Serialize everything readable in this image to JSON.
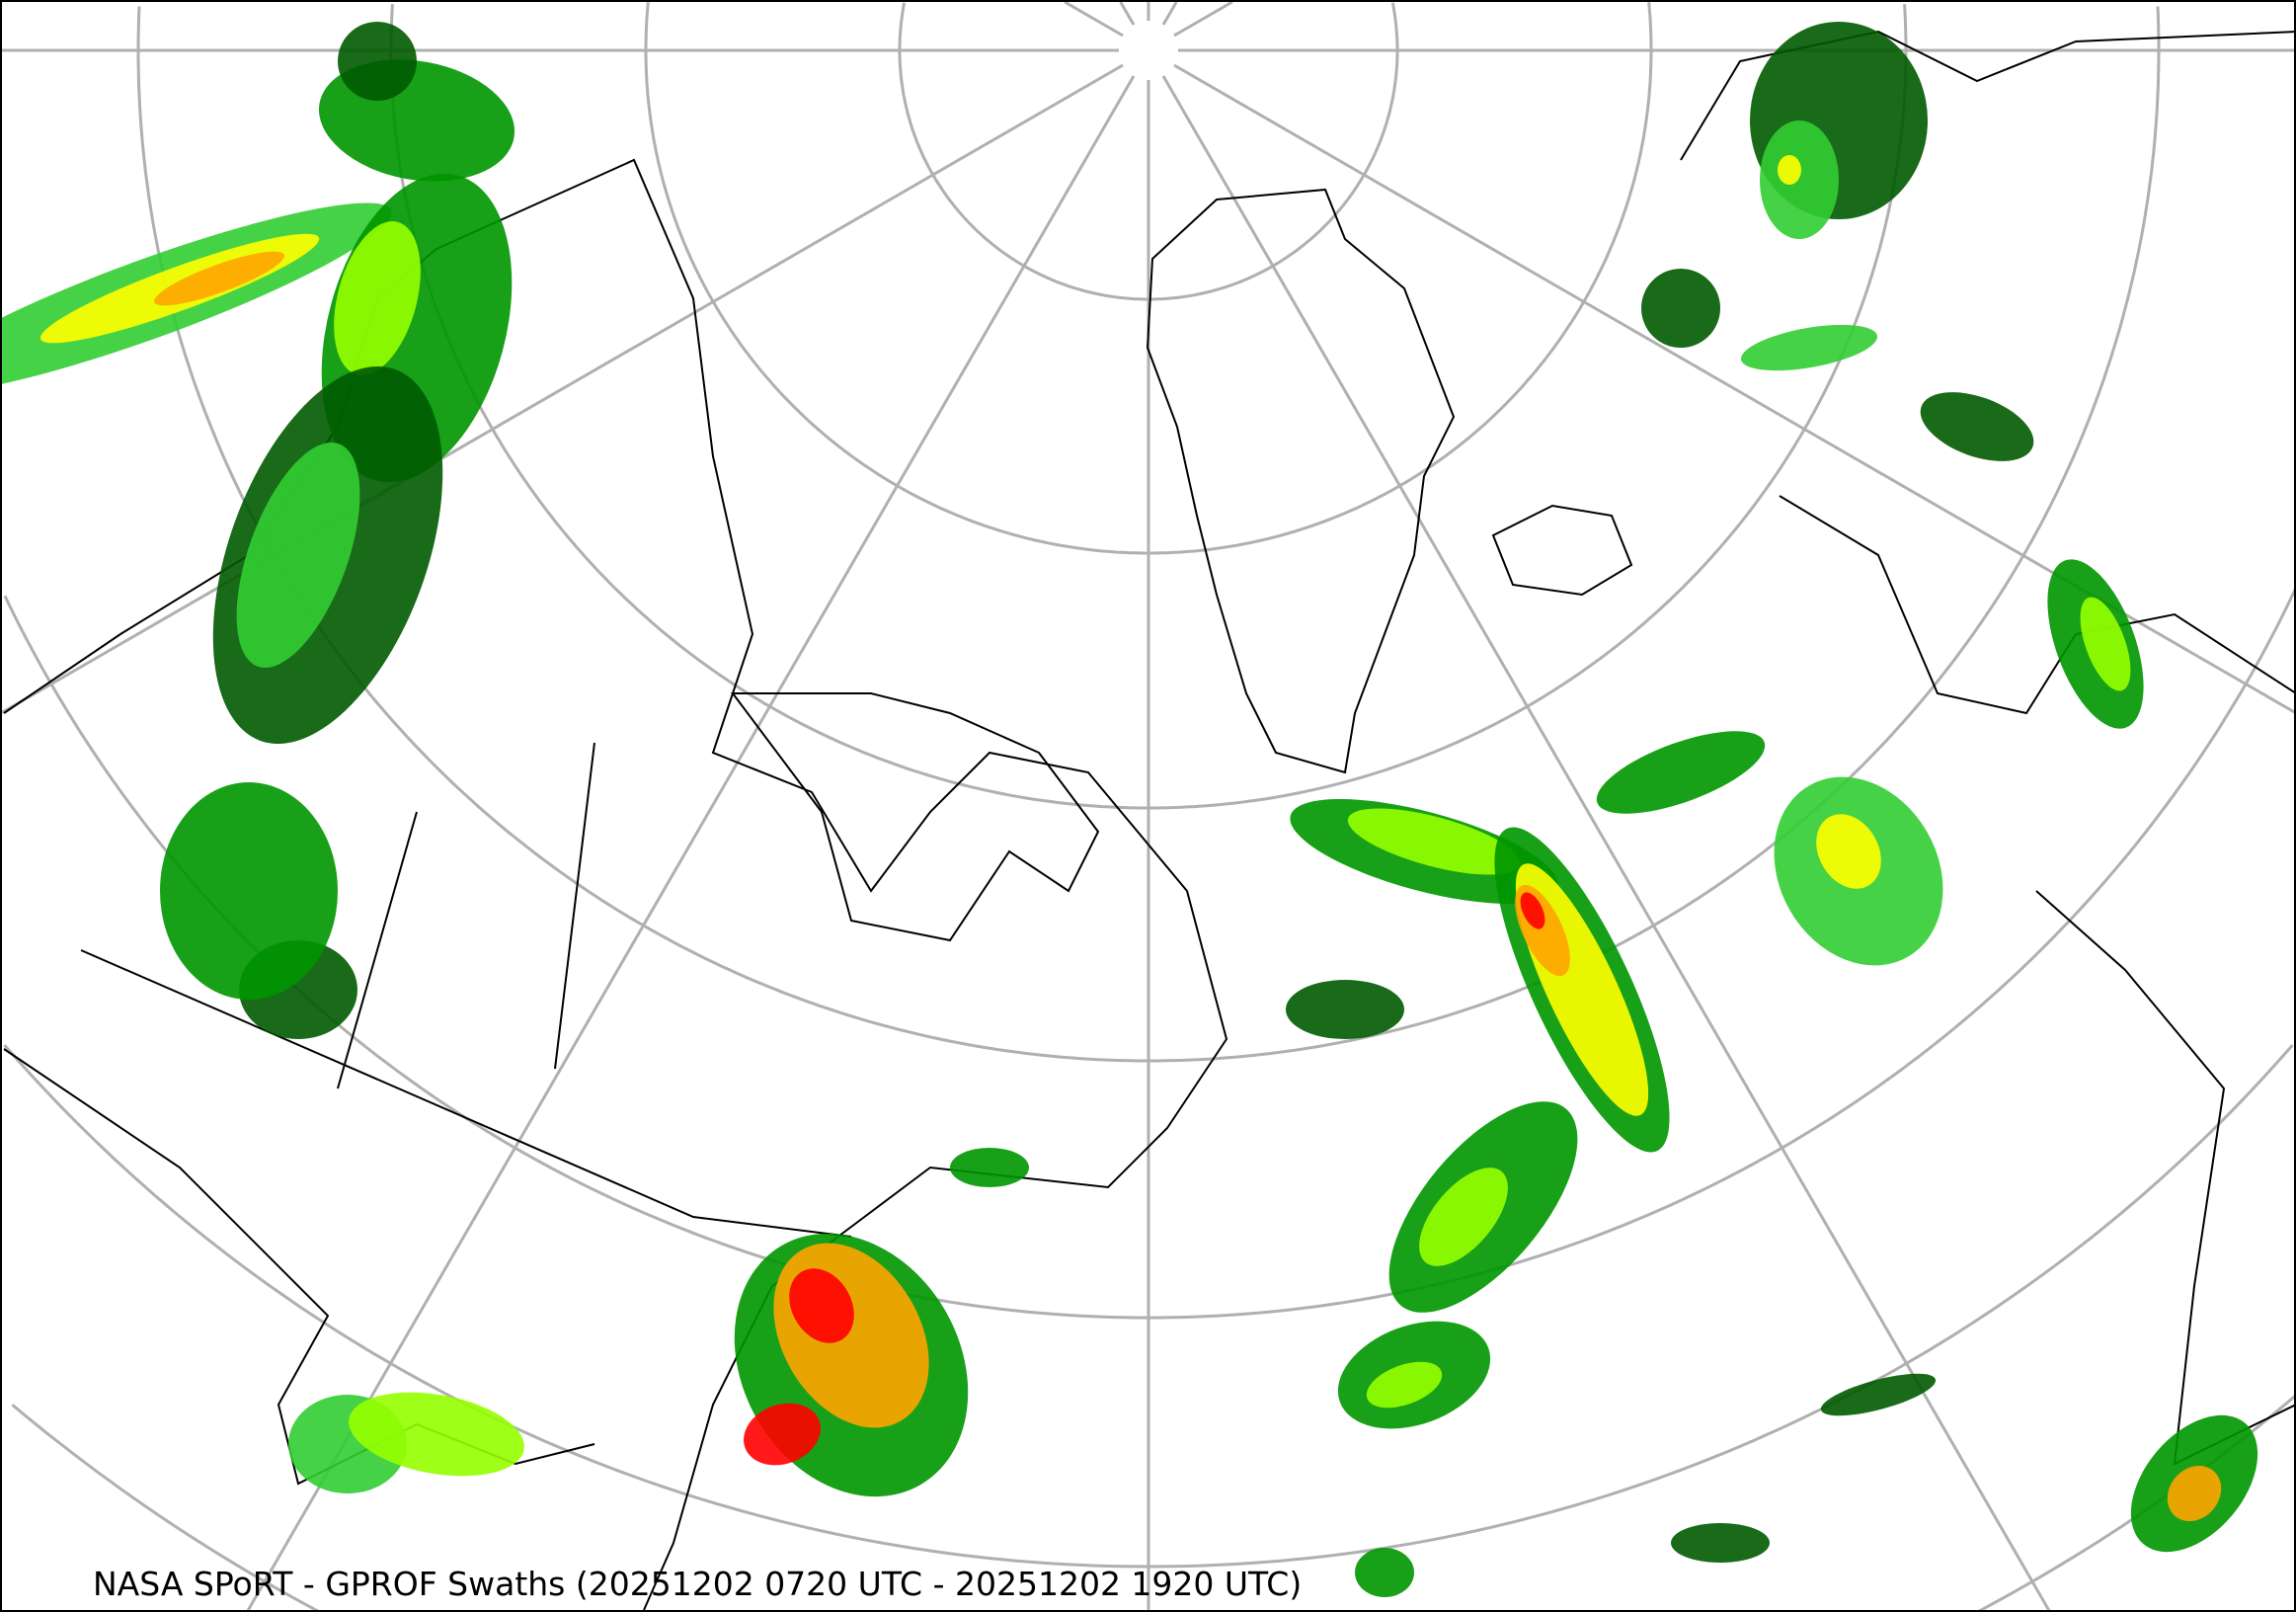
{
  "caption": "NASA SPoRT - GPROF Swaths (20251202 0720 UTC - 20251202 1920 UTC)",
  "map": {
    "projection": "polar stereographic (north pole)",
    "graticule_color": "#b0b0b0",
    "coastline_color": "#000000",
    "precip_colors": [
      "#005a00",
      "#009600",
      "#32cd32",
      "#96ff00",
      "#ffff00",
      "#ffa500",
      "#ff0000"
    ]
  }
}
